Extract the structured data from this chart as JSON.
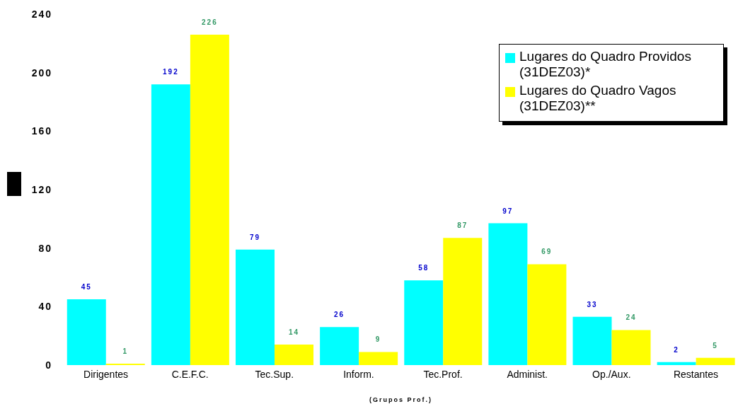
{
  "chart_data": {
    "type": "bar",
    "xlabel": "(Grupos Prof.)",
    "categories": [
      "Dirigentes",
      "C.E.F.C.",
      "Tec.Sup.",
      "Inform.",
      "Tec.Prof.",
      "Administ.",
      "Op./Aux.",
      "Restantes"
    ],
    "series": [
      {
        "name": "Lugares do Quadro Providos (31DEZ03)*",
        "color": "#00ffff",
        "values": [
          45,
          192,
          79,
          26,
          58,
          97,
          33,
          2
        ]
      },
      {
        "name": "Lugares do Quadro Vagos (31DEZ03)**",
        "color": "#ffff00",
        "values": [
          1,
          226,
          14,
          9,
          87,
          69,
          24,
          5
        ]
      }
    ],
    "ylim": [
      0,
      240
    ],
    "yticks": [
      0,
      40,
      80,
      120,
      160,
      200,
      240
    ],
    "legend": "top right",
    "data_labels": true
  }
}
